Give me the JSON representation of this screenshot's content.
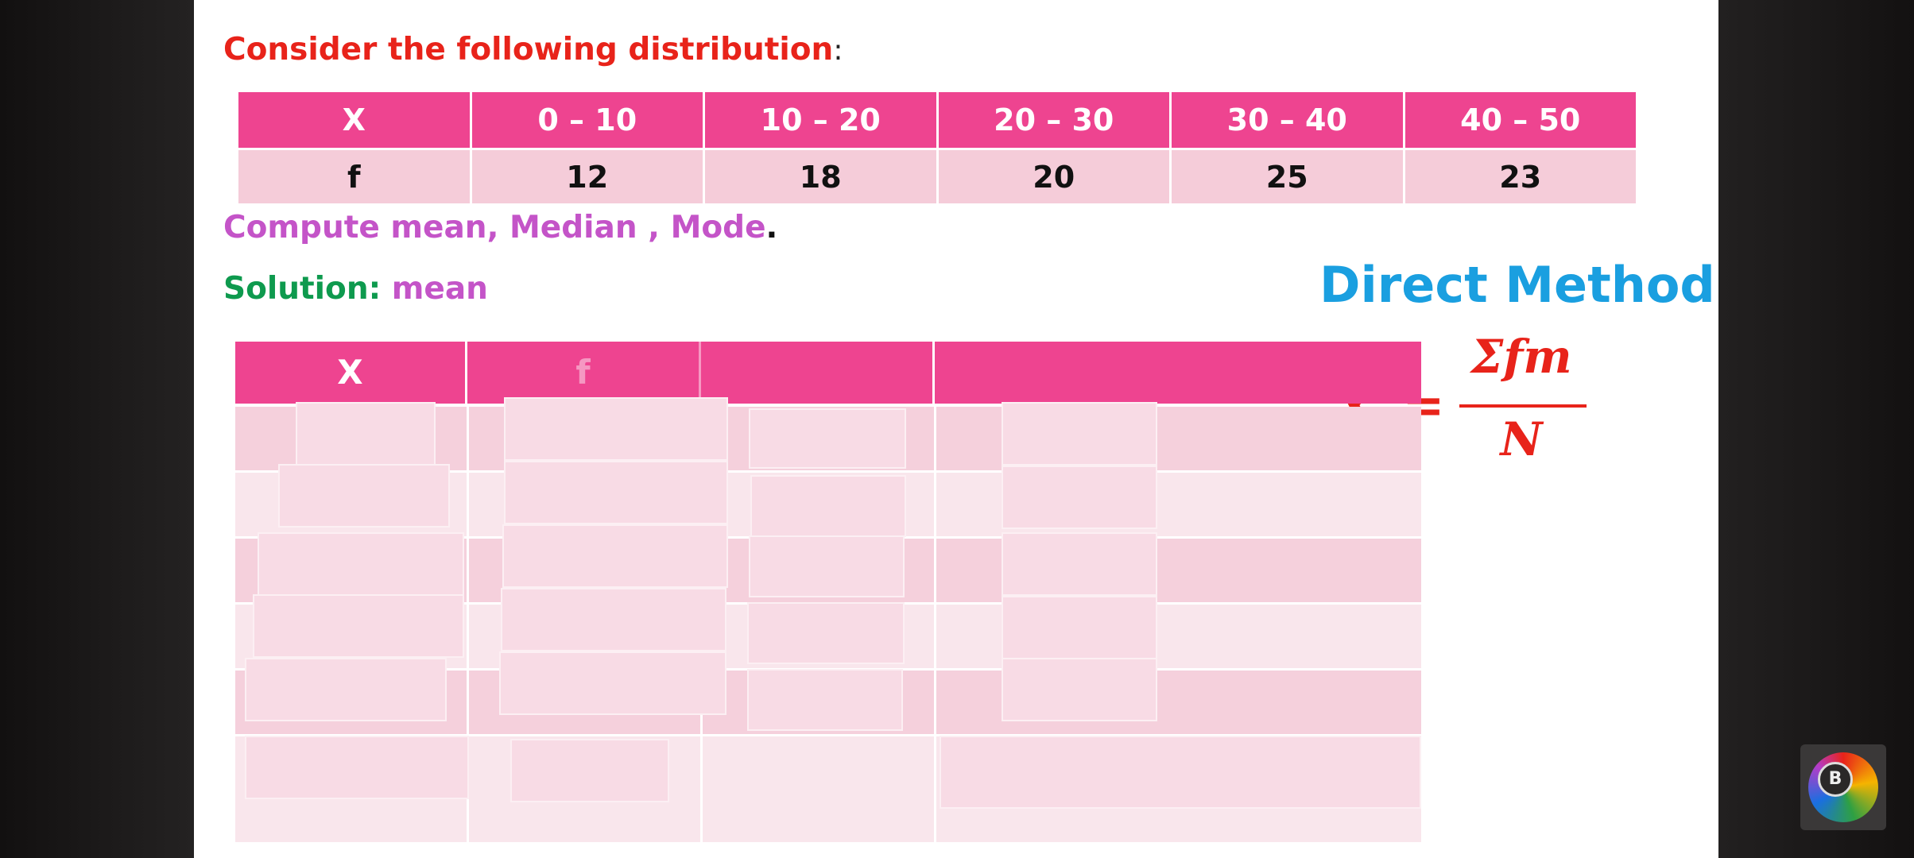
{
  "heading": {
    "text": "Consider the following distribution",
    "colon": ":"
  },
  "distribution_table": {
    "header": [
      "X",
      "0 – 10",
      "10 – 20",
      "20 – 30",
      "30 – 40",
      "40 – 50"
    ],
    "row": [
      "f",
      "12",
      "18",
      "20",
      "25",
      "23"
    ]
  },
  "task": {
    "text": "Compute mean, Median , Mode",
    "period": "."
  },
  "solution": {
    "label": "Solution: ",
    "topic": "mean"
  },
  "method_title": "Direct Method",
  "formula": {
    "lhs": "X",
    "equals": "=",
    "numerator": "Σfm",
    "denominator": "N"
  },
  "solution_table": {
    "headers": [
      "X",
      "f",
      "",
      ""
    ]
  },
  "badge": {
    "letter": "B",
    "icon": "channel-logo-icon"
  },
  "colors": {
    "header_pink": "#ee4490",
    "row_pink": "#f5ccd9",
    "title_red": "#e8231a",
    "accent_purple": "#c454c8",
    "solution_green": "#0e9a4e",
    "method_blue": "#1a9fe0"
  }
}
